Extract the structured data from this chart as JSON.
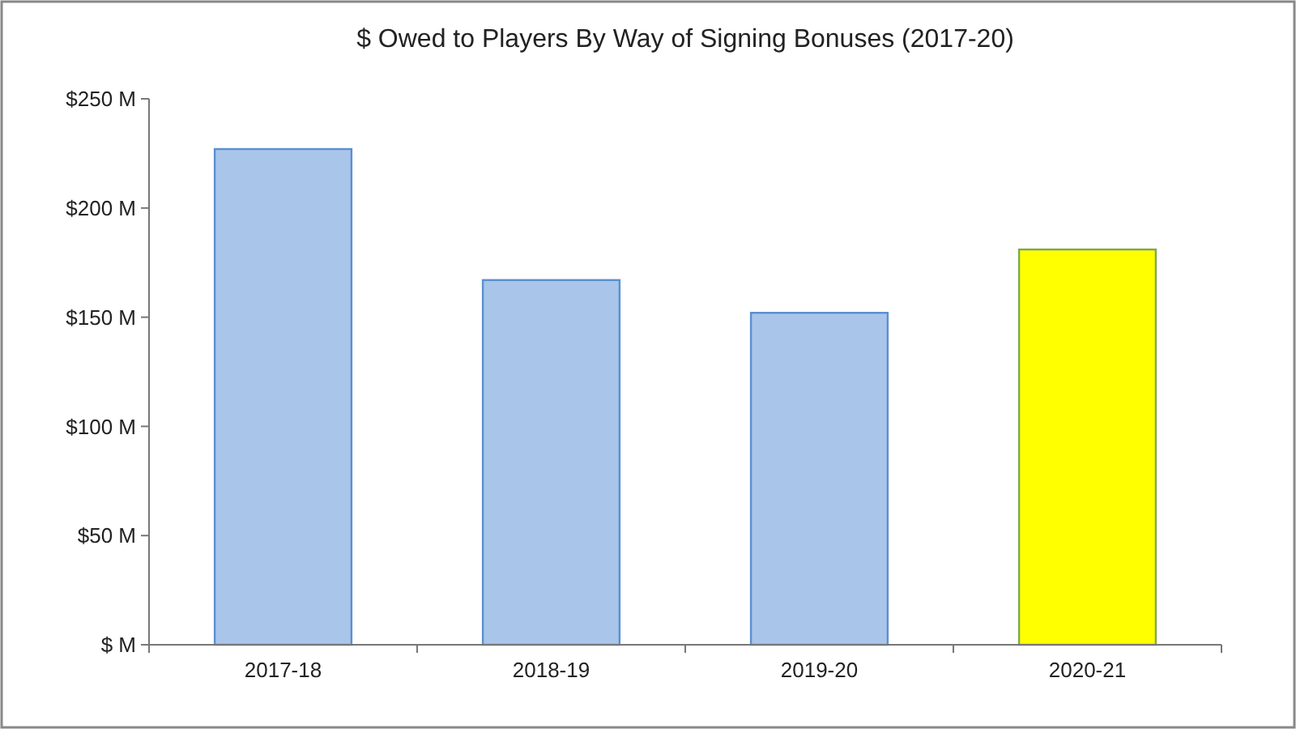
{
  "chart_data": {
    "type": "bar",
    "title": "$ Owed to Players By Way of Signing Bonuses (2017-20)",
    "categories": [
      "2017-18",
      "2018-19",
      "2019-20",
      "2020-21"
    ],
    "values": [
      227,
      167,
      152,
      181
    ],
    "colors": [
      "#a9c5ea",
      "#a9c5ea",
      "#a9c5ea",
      "#ffff00"
    ],
    "ylim": [
      0,
      250
    ],
    "yticks": [
      {
        "value": 0,
        "label": "$ M"
      },
      {
        "value": 50,
        "label": "$50 M"
      },
      {
        "value": 100,
        "label": "$100 M"
      },
      {
        "value": 150,
        "label": "$150 M"
      },
      {
        "value": 200,
        "label": "$200 M"
      },
      {
        "value": 250,
        "label": "$250 M"
      }
    ],
    "grid": false
  }
}
